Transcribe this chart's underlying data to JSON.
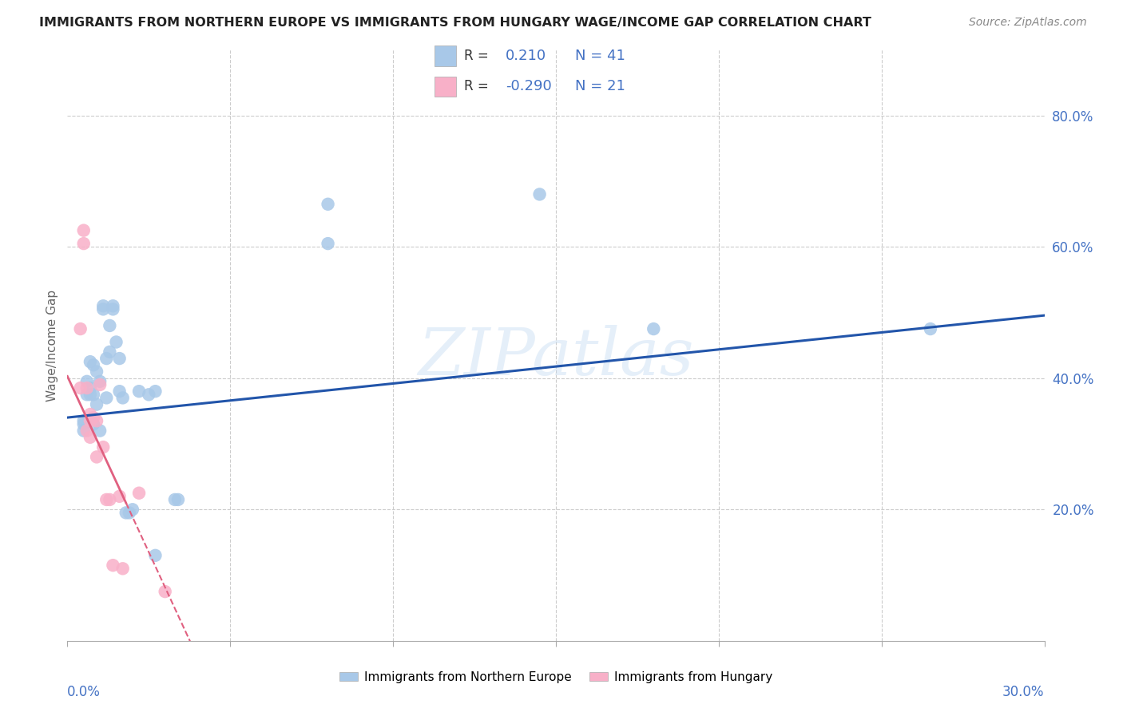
{
  "title": "IMMIGRANTS FROM NORTHERN EUROPE VS IMMIGRANTS FROM HUNGARY WAGE/INCOME GAP CORRELATION CHART",
  "source": "Source: ZipAtlas.com",
  "ylabel": "Wage/Income Gap",
  "watermark": "ZIPatlas",
  "legend_r_blue": "0.210",
  "legend_n_blue": "41",
  "legend_r_pink": "-0.290",
  "legend_n_pink": "21",
  "blue_color": "#a8c8e8",
  "pink_color": "#f8b0c8",
  "trendline_blue_color": "#2255aa",
  "trendline_pink_color": "#e06080",
  "legend_blue_label": "Immigrants from Northern Europe",
  "legend_pink_label": "Immigrants from Hungary",
  "blue_scatter_x": [
    0.005,
    0.005,
    0.005,
    0.006,
    0.006,
    0.007,
    0.007,
    0.007,
    0.008,
    0.008,
    0.008,
    0.009,
    0.009,
    0.01,
    0.01,
    0.011,
    0.011,
    0.012,
    0.012,
    0.013,
    0.013,
    0.014,
    0.014,
    0.015,
    0.016,
    0.016,
    0.017,
    0.018,
    0.019,
    0.02,
    0.022,
    0.025,
    0.027,
    0.027,
    0.033,
    0.034,
    0.08,
    0.08,
    0.145,
    0.18,
    0.265
  ],
  "blue_scatter_y": [
    0.335,
    0.33,
    0.32,
    0.395,
    0.375,
    0.425,
    0.385,
    0.375,
    0.42,
    0.375,
    0.33,
    0.41,
    0.36,
    0.395,
    0.32,
    0.51,
    0.505,
    0.43,
    0.37,
    0.48,
    0.44,
    0.505,
    0.51,
    0.455,
    0.43,
    0.38,
    0.37,
    0.195,
    0.195,
    0.2,
    0.38,
    0.375,
    0.38,
    0.13,
    0.215,
    0.215,
    0.665,
    0.605,
    0.68,
    0.475,
    0.475
  ],
  "pink_scatter_x": [
    0.004,
    0.004,
    0.005,
    0.005,
    0.006,
    0.006,
    0.007,
    0.007,
    0.007,
    0.008,
    0.009,
    0.009,
    0.01,
    0.011,
    0.012,
    0.013,
    0.014,
    0.016,
    0.017,
    0.022,
    0.03
  ],
  "pink_scatter_y": [
    0.475,
    0.385,
    0.625,
    0.605,
    0.385,
    0.32,
    0.345,
    0.335,
    0.31,
    0.34,
    0.335,
    0.28,
    0.39,
    0.295,
    0.215,
    0.215,
    0.115,
    0.22,
    0.11,
    0.225,
    0.075
  ],
  "xlim": [
    0.0,
    0.3
  ],
  "ylim": [
    0.0,
    0.9
  ],
  "yticks": [
    0.2,
    0.4,
    0.6,
    0.8
  ],
  "ytick_labels": [
    "20.0%",
    "40.0%",
    "60.0%",
    "80.0%"
  ],
  "xtick_vals": [
    0.0,
    0.05,
    0.1,
    0.15,
    0.2,
    0.25,
    0.3
  ],
  "tick_color": "#4472c4",
  "grid_color": "#cccccc",
  "title_color": "#222222",
  "source_color": "#888888",
  "label_color": "#666666"
}
